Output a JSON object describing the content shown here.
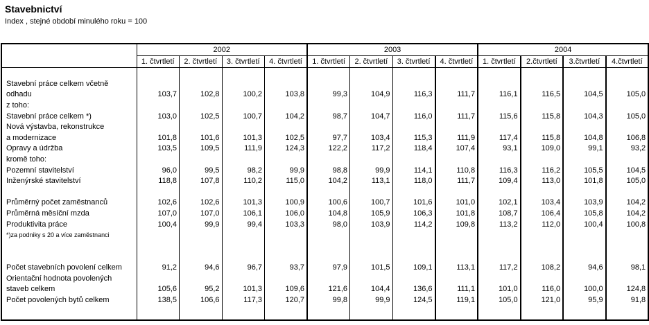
{
  "page": {
    "title": "Stavebnictví",
    "subtitle": "Index , stejné období minulého roku = 100"
  },
  "colors": {
    "text": "#000000",
    "background": "#ffffff",
    "border": "#000000"
  },
  "table": {
    "years": [
      {
        "label": "2002",
        "quarters": [
          "1. čtvrtletí",
          "2. čtvrtletí",
          "3. čtvrtletí",
          "4. čtvrtletí"
        ]
      },
      {
        "label": "2003",
        "quarters": [
          "1. čtvrtletí",
          "2. čtvrtletí",
          "3. čtvrtletí",
          "4. čtvrtletí"
        ]
      },
      {
        "label": "2004",
        "quarters": [
          "1. čtvrtletí",
          "2.čtvrtletí",
          "3.čtvrtletí",
          "4.čtvrtletí"
        ]
      }
    ],
    "rows": [
      {
        "label": "",
        "values": null
      },
      {
        "label": "Stavební práce celkem včetně",
        "values": null
      },
      {
        "label": "odhadu",
        "values": [
          "103,7",
          "102,8",
          "100,2",
          "103,8",
          "99,3",
          "104,9",
          "116,3",
          "111,7",
          "116,1",
          "116,5",
          "104,5",
          "105,0"
        ]
      },
      {
        "label": "z toho:",
        "values": null
      },
      {
        "label": "Stavební práce celkem  *)",
        "values": [
          "103,0",
          "102,5",
          "100,7",
          "104,2",
          "98,7",
          "104,7",
          "116,0",
          "111,7",
          "115,6",
          "115,8",
          "104,3",
          "105,0"
        ]
      },
      {
        "label": "Nová výstavba, rekonstrukce",
        "values": null
      },
      {
        "label": "a modernizace",
        "values": [
          "101,8",
          "101,6",
          "101,3",
          "102,5",
          "97,7",
          "103,4",
          "115,3",
          "111,9",
          "117,4",
          "115,8",
          "104,8",
          "106,8"
        ]
      },
      {
        "label": "Opravy a údržba",
        "values": [
          "103,5",
          "109,5",
          "111,9",
          "124,3",
          "122,2",
          "117,2",
          "118,4",
          "107,4",
          "93,1",
          "109,0",
          "99,1",
          "93,2"
        ]
      },
      {
        "label": "kromě toho:",
        "values": null
      },
      {
        "label": "Pozemní stavitelství",
        "values": [
          "96,0",
          "99,5",
          "98,2",
          "99,9",
          "98,8",
          "99,9",
          "114,1",
          "110,8",
          "116,3",
          "116,2",
          "105,5",
          "104,5"
        ]
      },
      {
        "label": "Inženýrské stavitelství",
        "values": [
          "118,8",
          "107,8",
          "110,2",
          "115,0",
          "104,2",
          "113,1",
          "118,0",
          "111,7",
          "109,4",
          "113,0",
          "101,8",
          "105,0"
        ]
      },
      {
        "label": "",
        "values": null
      },
      {
        "label": "Průměrný počet zaměstnanců",
        "values": [
          "102,6",
          "102,6",
          "101,3",
          "100,9",
          "100,6",
          "100,7",
          "101,6",
          "101,0",
          "102,1",
          "103,4",
          "103,9",
          "104,2"
        ]
      },
      {
        "label": "Průměrná měsíční mzda",
        "values": [
          "107,0",
          "107,0",
          "106,1",
          "106,0",
          "104,8",
          "105,9",
          "106,3",
          "101,8",
          "108,7",
          "106,4",
          "105,8",
          "104,2"
        ]
      },
      {
        "label": "Produktivita práce",
        "values": [
          "100,4",
          "99,9",
          "99,4",
          "103,3",
          "98,0",
          "103,9",
          "114,2",
          "109,8",
          "113,2",
          "112,0",
          "100,4",
          "100,8"
        ]
      },
      {
        "label": "*)za podniky s 20 a více zaměstnanci",
        "values": null,
        "style": "footnote"
      },
      {
        "label": "",
        "values": null
      },
      {
        "label": "",
        "values": null
      },
      {
        "label": "Počet stavebních povolení celkem",
        "values": [
          "91,2",
          "94,6",
          "96,7",
          "93,7",
          "97,9",
          "101,5",
          "109,1",
          "113,1",
          "117,2",
          "108,2",
          "94,6",
          "98,1"
        ]
      },
      {
        "label": "Orientační hodnota povolených",
        "values": null
      },
      {
        "label": "staveb celkem",
        "values": [
          "105,6",
          "95,2",
          "101,3",
          "109,6",
          "121,6",
          "104,4",
          "136,6",
          "111,1",
          "101,0",
          "116,0",
          "100,0",
          "124,8"
        ]
      },
      {
        "label": "Počet povolených bytů celkem",
        "values": [
          "138,5",
          "106,6",
          "117,3",
          "120,7",
          "99,8",
          "99,9",
          "124,5",
          "119,1",
          "105,0",
          "121,0",
          "95,9",
          "91,8"
        ]
      },
      {
        "label": "",
        "values": null,
        "style": "tall"
      }
    ]
  }
}
